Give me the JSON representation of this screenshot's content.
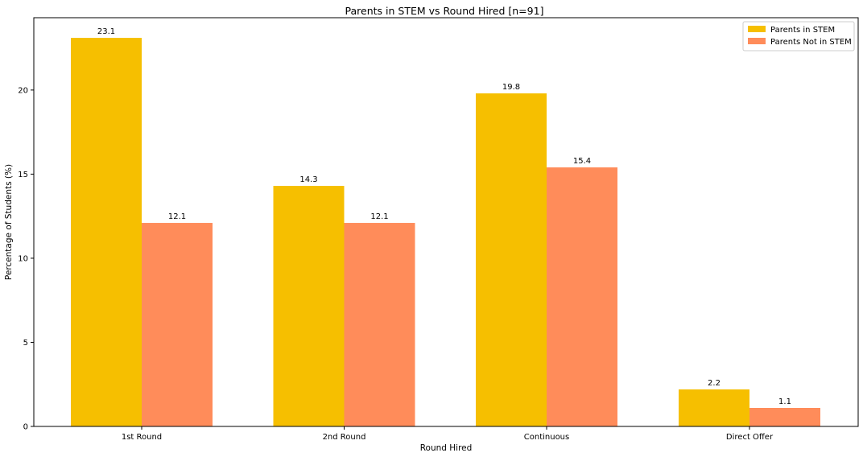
{
  "chart_data": {
    "type": "bar",
    "title": "Parents in STEM vs Round Hired [n=91]",
    "xlabel": "Round Hired",
    "ylabel": "Percentage of Students (%)",
    "categories": [
      "1st Round",
      "2nd Round",
      "Continuous",
      "Direct Offer"
    ],
    "series": [
      {
        "name": "Parents in STEM",
        "color": "#f6bf00",
        "values": [
          23.1,
          14.3,
          19.8,
          2.2
        ]
      },
      {
        "name": "Parents Not in STEM",
        "color": "#ff8c5a",
        "values": [
          12.1,
          12.1,
          15.4,
          1.1
        ]
      }
    ],
    "ylim": [
      0,
      24.3
    ],
    "yticks": [
      0,
      5,
      10,
      15,
      20
    ],
    "grid": false,
    "legend": "top-right"
  }
}
